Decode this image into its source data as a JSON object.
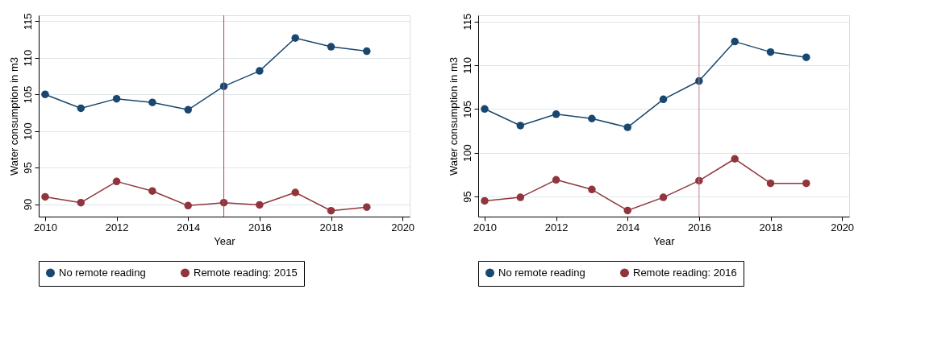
{
  "chart_data": [
    {
      "type": "line",
      "xlabel": "Year",
      "ylabel": "Water consumption in m3",
      "x": [
        2010,
        2011,
        2012,
        2013,
        2014,
        2015,
        2016,
        2017,
        2018,
        2019
      ],
      "series": [
        {
          "name": "No remote reading",
          "color": "#1a476f",
          "values": [
            105.0,
            103.1,
            104.4,
            103.9,
            102.9,
            106.1,
            108.2,
            112.7,
            111.5,
            110.9
          ]
        },
        {
          "name": "Remote reading: 2015",
          "color": "#90353b",
          "values": [
            91.0,
            90.2,
            93.1,
            91.8,
            89.8,
            90.2,
            89.9,
            91.6,
            89.1,
            89.6
          ]
        }
      ],
      "xlim": [
        2009.82,
        2020.2
      ],
      "xticks": [
        2010,
        2012,
        2014,
        2016,
        2018,
        2020
      ],
      "ylim": [
        88.3,
        115.8
      ],
      "yticks": [
        90,
        95,
        100,
        105,
        110,
        115
      ],
      "ref_lines": [
        {
          "axis": "x",
          "value": 2015,
          "color": "#a0505a"
        }
      ],
      "grid": "y",
      "legend": "bottom",
      "marker": "circle",
      "line_style": "solid"
    },
    {
      "type": "line",
      "xlabel": "Year",
      "ylabel": "Water consumption in m3",
      "x": [
        2010,
        2011,
        2012,
        2013,
        2014,
        2015,
        2016,
        2017,
        2018,
        2019
      ],
      "series": [
        {
          "name": "No remote reading",
          "color": "#1a476f",
          "values": [
            105.0,
            103.1,
            104.4,
            103.9,
            102.9,
            106.1,
            108.2,
            112.7,
            111.5,
            110.9
          ]
        },
        {
          "name": "Remote reading: 2016",
          "color": "#90353b",
          "values": [
            94.5,
            94.9,
            96.9,
            95.8,
            93.4,
            94.9,
            96.8,
            99.3,
            96.5,
            96.5
          ]
        }
      ],
      "xlim": [
        2009.82,
        2020.2
      ],
      "xticks": [
        2010,
        2012,
        2014,
        2016,
        2018,
        2020
      ],
      "ylim": [
        92.7,
        115.7
      ],
      "yticks": [
        95,
        100,
        105,
        110,
        115
      ],
      "ref_lines": [
        {
          "axis": "x",
          "value": 2016,
          "color": "#c08088"
        }
      ],
      "grid": "y",
      "legend": "bottom",
      "marker": "circle",
      "line_style": "solid"
    }
  ]
}
